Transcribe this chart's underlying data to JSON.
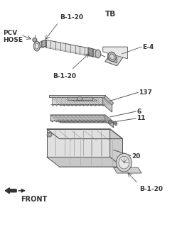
{
  "bg_color": "#ffffff",
  "lc": "#555555",
  "dc": "#333333",
  "labels": {
    "B120_top": "B-1-20",
    "TB": "TB",
    "PCV_HOSE": "PCV\nHOSE",
    "E4": "E-4",
    "B120_mid": "B-1-20",
    "num_137": "137",
    "num_6": "6",
    "num_11": "11",
    "num_20": "20",
    "B120_bot": "B-1-20",
    "FRONT": "FRONT"
  },
  "fs": 6.5,
  "figsize": [
    2.49,
    3.2
  ],
  "dpi": 100
}
